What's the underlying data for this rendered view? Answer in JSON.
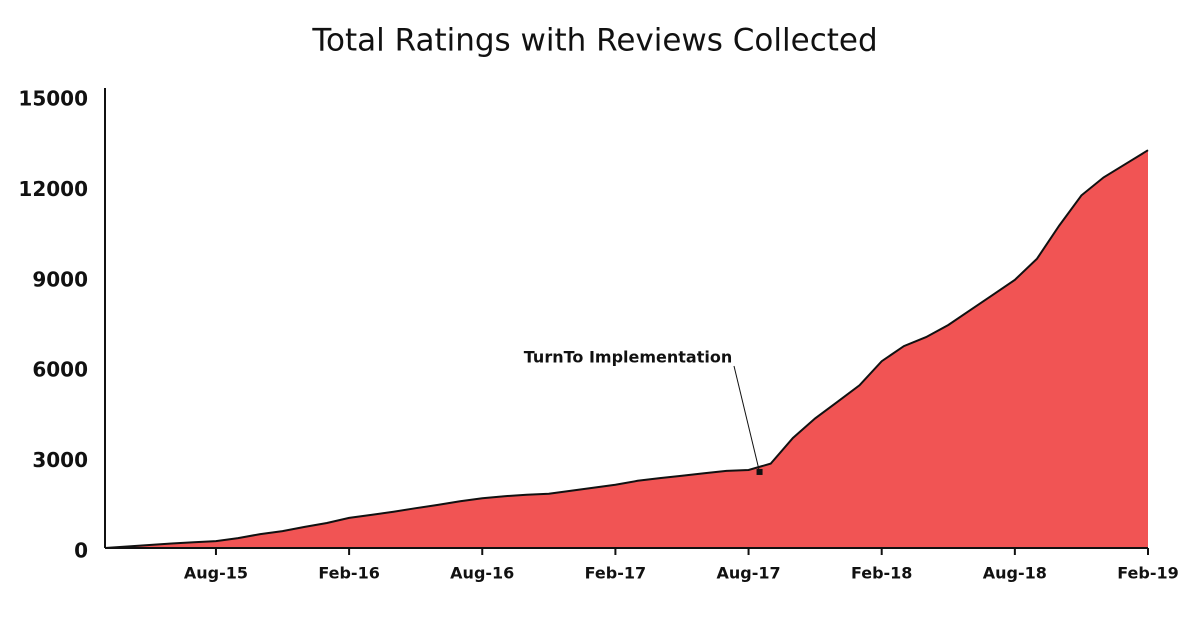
{
  "chart_data": {
    "type": "area",
    "title": "Total Ratings with Reviews Collected",
    "categories": [
      null,
      null,
      null,
      null,
      null,
      "Aug-15",
      null,
      null,
      null,
      null,
      null,
      "Feb-16",
      null,
      null,
      null,
      null,
      null,
      "Aug-16",
      null,
      null,
      null,
      null,
      null,
      "Feb-17",
      null,
      null,
      null,
      null,
      null,
      "Aug-17",
      null,
      null,
      null,
      null,
      null,
      "Feb-18",
      null,
      null,
      null,
      null,
      null,
      "Aug-18",
      null,
      null,
      null,
      null,
      null,
      "Feb-19"
    ],
    "values": [
      0,
      50,
      100,
      150,
      190,
      230,
      330,
      460,
      560,
      700,
      830,
      1000,
      1100,
      1200,
      1320,
      1430,
      1550,
      1650,
      1720,
      1770,
      1800,
      1900,
      2000,
      2100,
      2230,
      2320,
      2400,
      2480,
      2560,
      2590,
      2800,
      3650,
      4300,
      4850,
      5400,
      6200,
      6700,
      7000,
      7400,
      7900,
      8400,
      8900,
      9600,
      10700,
      11700,
      12300,
      12750,
      13200
    ],
    "color": "#f15454",
    "ylim": [
      0,
      15000
    ],
    "yticks": [
      0,
      3000,
      6000,
      9000,
      12000,
      15000
    ],
    "grid": false,
    "annotation": "TurnTo Implementation"
  }
}
